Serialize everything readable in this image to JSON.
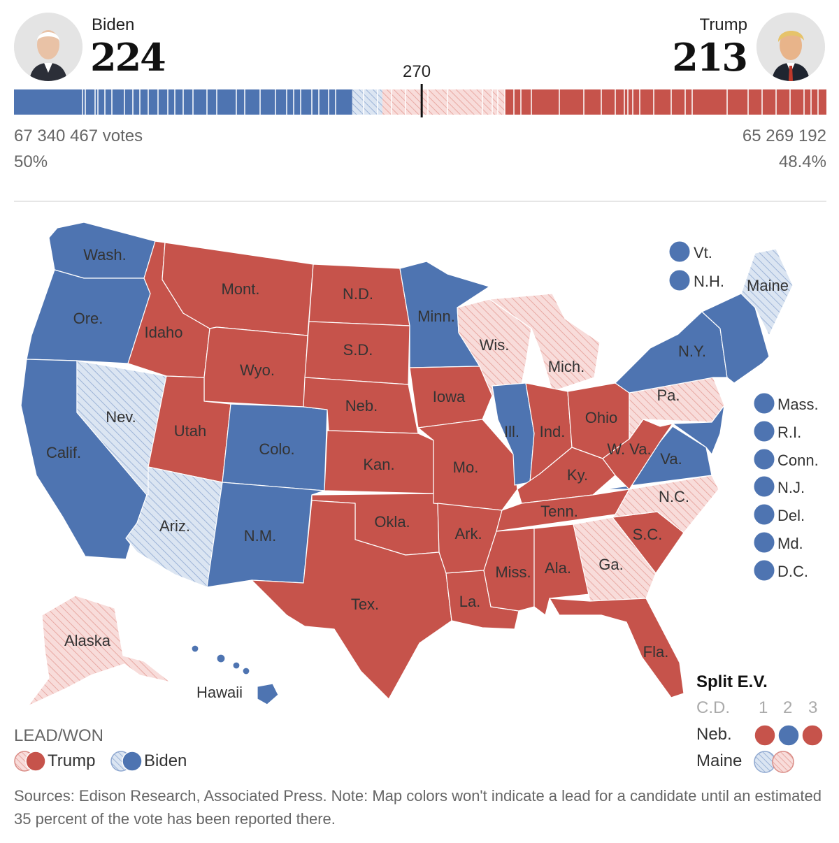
{
  "header": {
    "biden": {
      "name": "Biden",
      "electoral_votes": "224",
      "votes": "67 340 467 votes",
      "pct": "50%"
    },
    "trump": {
      "name": "Trump",
      "electoral_votes": "213",
      "votes": "65 269 192",
      "pct": "48.4%"
    },
    "threshold_label": "270"
  },
  "colors": {
    "biden_won": "#4e74b1",
    "biden_lead": "#d8e3f1",
    "trump_won": "#c6534b",
    "trump_lead": "#f6d8d6",
    "border": "#ffffff"
  },
  "bar": {
    "total": 538,
    "segments": [
      {
        "status": "biden_won",
        "ev": 224
      },
      {
        "status": "biden_lead",
        "ev": 20
      },
      {
        "status": "trump_lead",
        "ev": 81
      },
      {
        "status": "trump_won",
        "ev": 213
      }
    ]
  },
  "map_labels": {
    "wa": "Wash.",
    "or": "Ore.",
    "ca": "Calif.",
    "nv": "Nev.",
    "id": "Idaho",
    "mt": "Mont.",
    "wy": "Wyo.",
    "ut": "Utah",
    "co": "Colo.",
    "az": "Ariz.",
    "nm": "N.M.",
    "nd": "N.D.",
    "sd": "S.D.",
    "ne": "Neb.",
    "ks": "Kan.",
    "ok": "Okla.",
    "tx": "Tex.",
    "mn": "Minn.",
    "ia": "Iowa",
    "mo": "Mo.",
    "ar": "Ark.",
    "la": "La.",
    "wi": "Wis.",
    "il": "Ill.",
    "mi": "Mich.",
    "in": "Ind.",
    "oh": "Ohio",
    "ky": "Ky.",
    "tn": "Tenn.",
    "ms": "Miss.",
    "al": "Ala.",
    "ga": "Ga.",
    "fl": "Fla.",
    "sc": "S.C.",
    "nc": "N.C.",
    "va": "Va.",
    "wv": "W. Va.",
    "pa": "Pa.",
    "ny": "N.Y.",
    "me": "Maine",
    "ak": "Alaska",
    "hi": "Hawaii"
  },
  "map_states": {
    "wa": "biden_won",
    "or": "biden_won",
    "ca": "biden_won",
    "nv": "biden_lead",
    "id": "trump_won",
    "mt": "trump_won",
    "wy": "trump_won",
    "ut": "trump_won",
    "co": "biden_won",
    "az": "biden_lead",
    "nm": "biden_won",
    "nd": "trump_won",
    "sd": "trump_won",
    "ne": "trump_won",
    "ks": "trump_won",
    "ok": "trump_won",
    "tx": "trump_won",
    "mn": "biden_won",
    "ia": "trump_won",
    "mo": "trump_won",
    "ar": "trump_won",
    "la": "trump_won",
    "wi": "trump_lead",
    "il": "biden_won",
    "mi": "trump_lead",
    "in": "trump_won",
    "oh": "trump_won",
    "ky": "trump_won",
    "tn": "trump_won",
    "ms": "trump_won",
    "al": "trump_won",
    "ga": "trump_lead",
    "fl": "trump_won",
    "sc": "trump_won",
    "nc": "trump_lead",
    "va": "biden_won",
    "wv": "trump_won",
    "pa": "trump_lead",
    "ny": "biden_won",
    "me": "biden_lead",
    "ne_region": "biden_won",
    "ak": "trump_lead",
    "hi": "biden_won"
  },
  "small_states": [
    {
      "label": "Vt.",
      "status": "biden_won"
    },
    {
      "label": "N.H.",
      "status": "biden_won"
    },
    {
      "label": "Mass.",
      "status": "biden_won"
    },
    {
      "label": "R.I.",
      "status": "biden_won"
    },
    {
      "label": "Conn.",
      "status": "biden_won"
    },
    {
      "label": "N.J.",
      "status": "biden_won"
    },
    {
      "label": "Del.",
      "status": "biden_won"
    },
    {
      "label": "Md.",
      "status": "biden_won"
    },
    {
      "label": "D.C.",
      "status": "biden_won"
    }
  ],
  "split_ev": {
    "title": "Split E.V.",
    "cd_label": "C.D.",
    "districts": [
      "1",
      "2",
      "3"
    ],
    "rows": [
      {
        "state": "Neb.",
        "statuses": [
          "trump_won",
          "biden_won",
          "trump_won"
        ]
      },
      {
        "state": "Maine",
        "statuses": [
          "biden_lead",
          "trump_lead"
        ]
      }
    ]
  },
  "legend": {
    "title": "LEAD/WON",
    "trump_label": "Trump",
    "biden_label": "Biden"
  },
  "footnote": "Sources: Edison Research, Associated Press. Note: Map colors won't indicate a lead for a candidate until an estimated 35 percent of the vote has been reported there."
}
